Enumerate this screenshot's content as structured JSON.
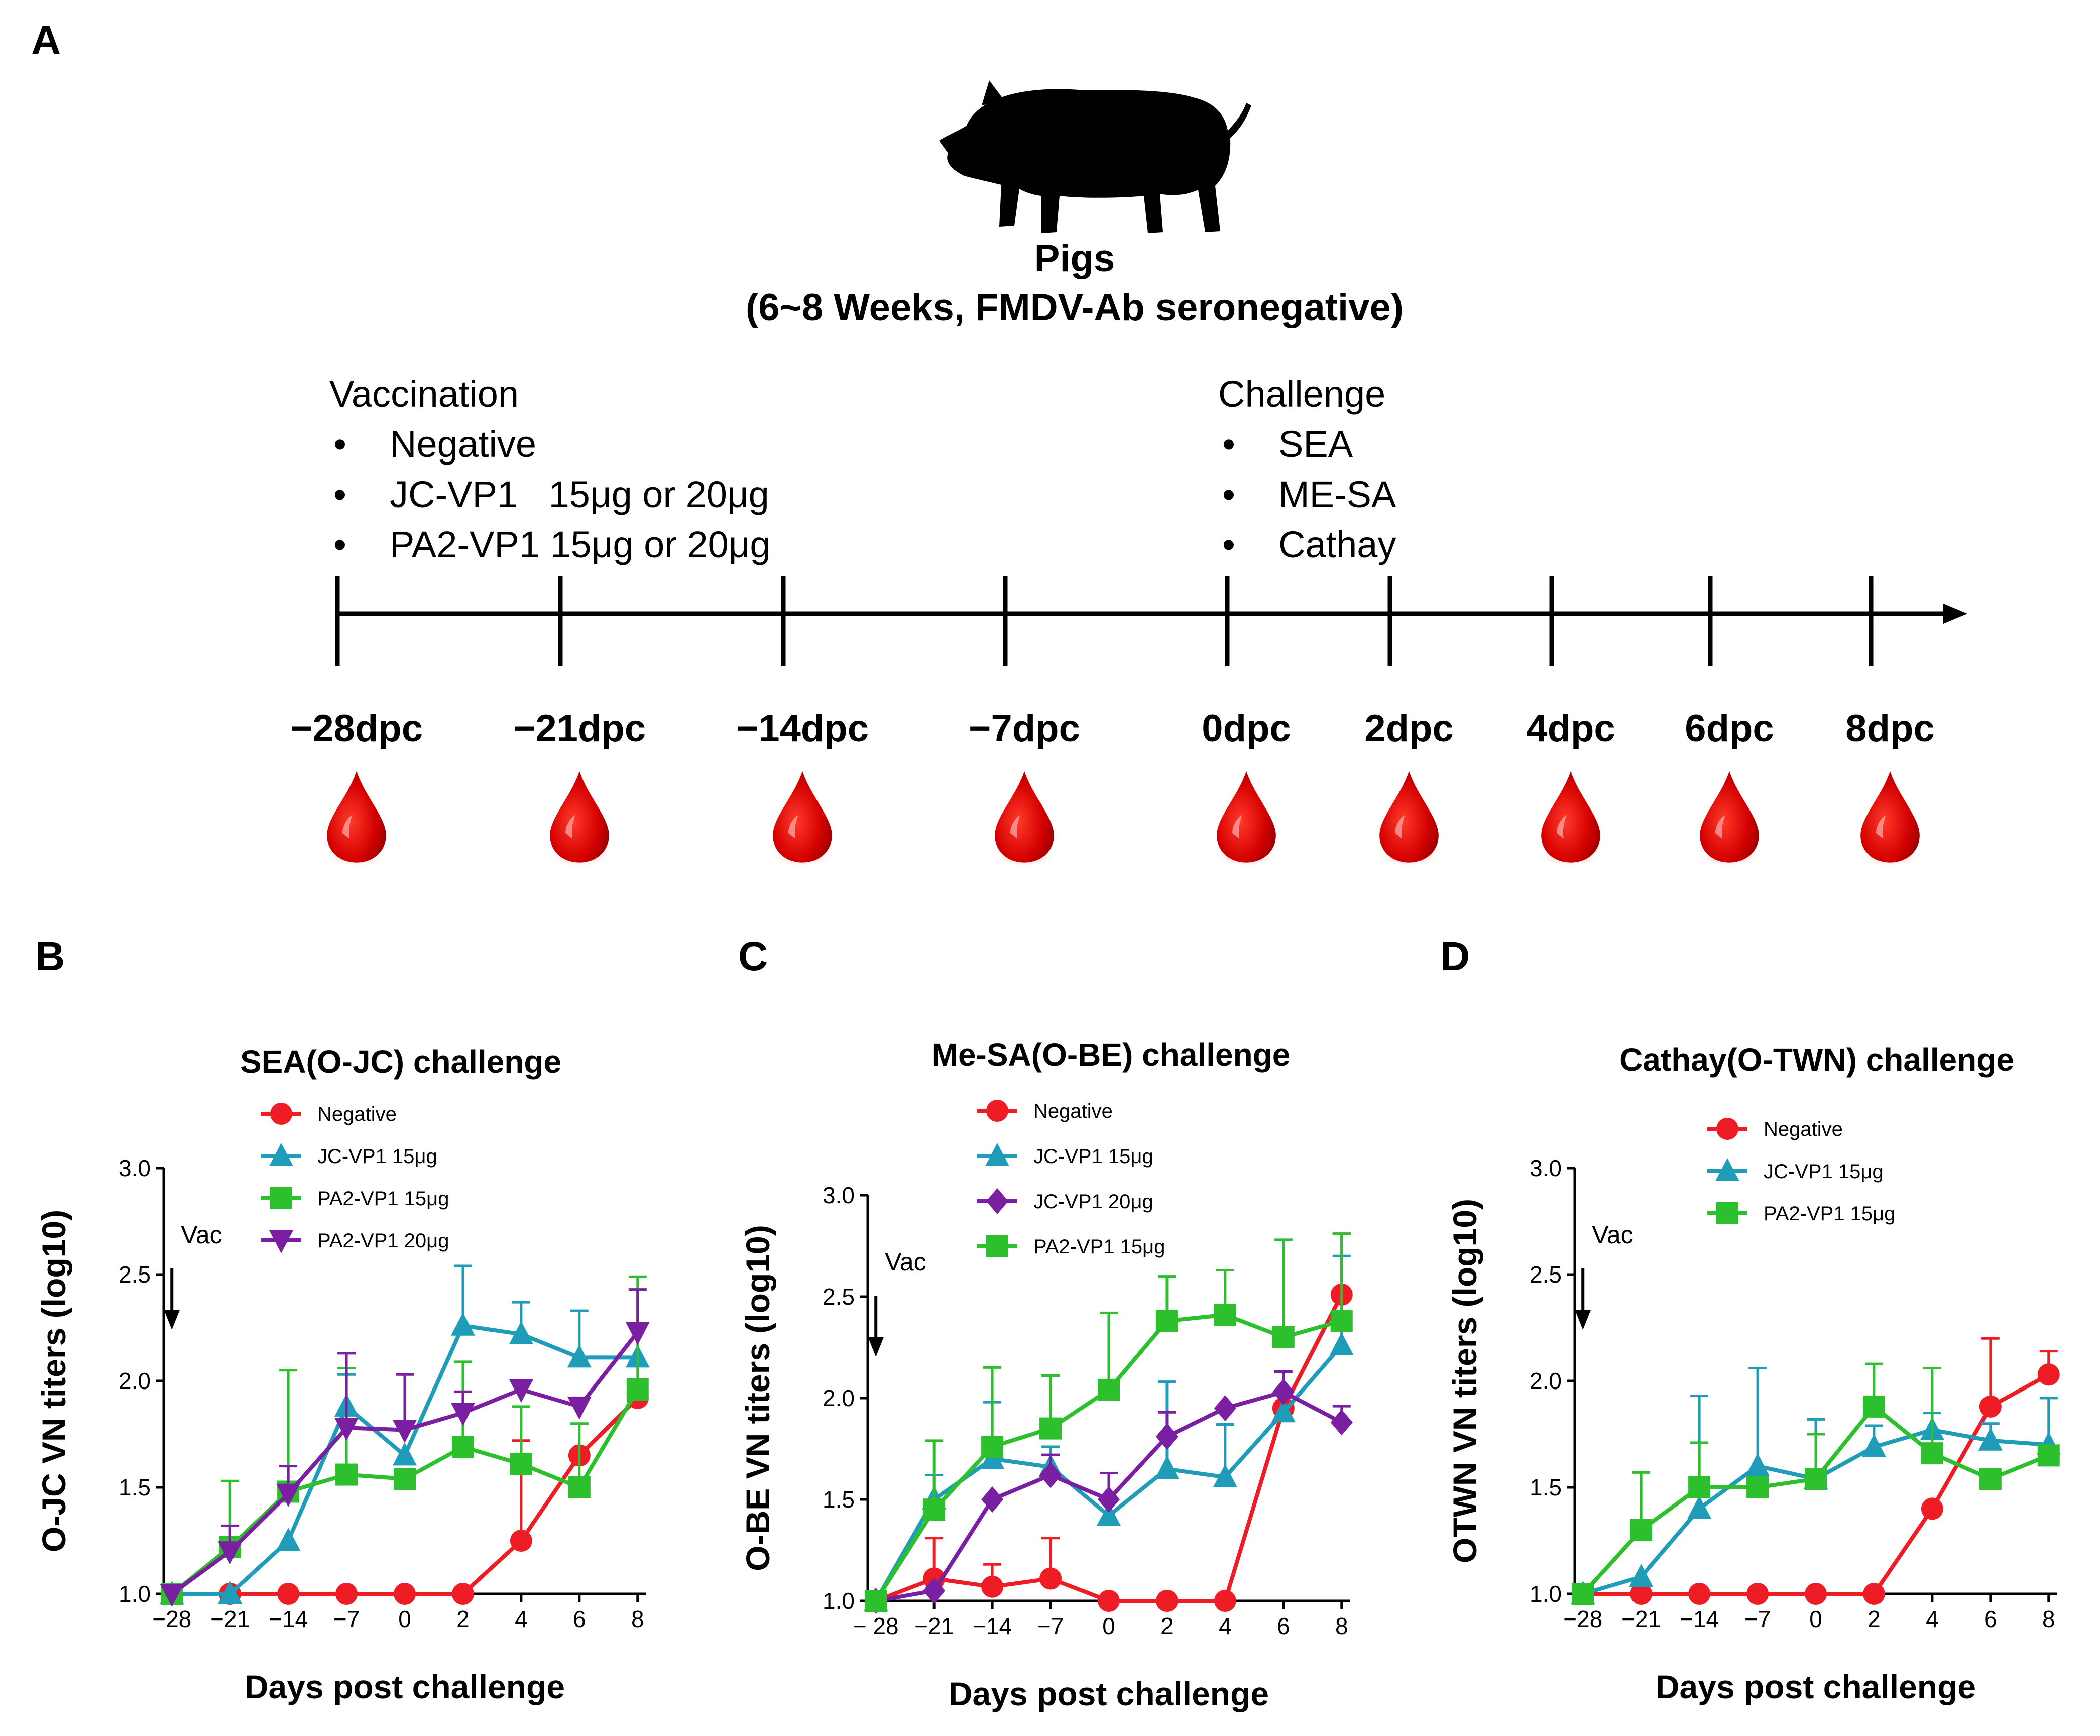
{
  "panel_a": {
    "letter": "A",
    "subject_title": "Pigs",
    "subject_subtitle": "(6~8 Weeks, FMDV-Ab seronegative)",
    "vaccination_heading": "Vaccination",
    "vaccination_items": [
      "Negative",
      "JC-VP1   15μg or 20μg",
      "PA2-VP1 15μg or 20μg"
    ],
    "challenge_heading": "Challenge",
    "challenge_items": [
      "SEA",
      "ME-SA",
      "Cathay"
    ],
    "timeline_labels": [
      "−28dpc",
      "−21dpc",
      "−14dpc",
      "−7dpc",
      "0dpc",
      "2dpc",
      "4dpc",
      "6dpc",
      "8dpc"
    ],
    "bullet": "•",
    "icons": {
      "subject": "pig-silhouette-icon",
      "sample": "blood-drop-icon"
    },
    "colors": {
      "blood": "#d40000",
      "blood_dark": "#8a0000"
    }
  },
  "chart_data": [
    {
      "panel": "B",
      "type": "line",
      "title": "SEA(O-JC) challenge",
      "xlabel": "Days post challenge",
      "ylabel": "O-JC VN titers (log10)",
      "x": [
        -28,
        -21,
        -14,
        -7,
        0,
        2,
        4,
        6,
        8
      ],
      "x_tick_labels": [
        "−28",
        "−21",
        "−14",
        "−7",
        "0",
        "2",
        "4",
        "6",
        "8"
      ],
      "ylim": [
        1.0,
        3.0
      ],
      "y_ticks": [
        "1.0",
        "1.5",
        "2.0",
        "2.5",
        "3.0"
      ],
      "annotation": "Vac",
      "annotation_x": -28,
      "series": [
        {
          "name": "Negative",
          "color": "#ee1c25",
          "marker": "circle",
          "values": [
            1.0,
            1.0,
            1.0,
            1.0,
            1.0,
            1.0,
            1.25,
            1.65,
            1.92
          ],
          "errors": [
            0,
            0,
            0,
            0,
            0,
            0,
            0.47,
            0.0,
            0.0
          ]
        },
        {
          "name": "JC-VP1   15μg",
          "color": "#1f9db8",
          "marker": "triangle-up",
          "values": [
            1.0,
            1.0,
            1.25,
            1.88,
            1.65,
            2.26,
            2.22,
            2.11,
            2.11
          ],
          "errors": [
            0,
            0,
            0,
            0.15,
            0,
            0.28,
            0.15,
            0.22,
            0
          ]
        },
        {
          "name": "PA2-VP1 15μg",
          "color": "#2dc02d",
          "marker": "square",
          "values": [
            1.0,
            1.22,
            1.48,
            1.56,
            1.54,
            1.69,
            1.61,
            1.5,
            1.96
          ],
          "errors": [
            0,
            0.31,
            0.57,
            0.5,
            0,
            0.4,
            0.27,
            0.3,
            0.53
          ]
        },
        {
          "name": "PA2-VP1 20μg",
          "color": "#7b1fa2",
          "marker": "triangle-down",
          "values": [
            1.0,
            1.2,
            1.47,
            1.78,
            1.77,
            1.85,
            1.96,
            1.88,
            2.23
          ],
          "errors": [
            0,
            0.12,
            0.13,
            0.35,
            0.26,
            0.1,
            0,
            0,
            0.2
          ]
        }
      ]
    },
    {
      "panel": "C",
      "type": "line",
      "title": "Me-SA(O-BE) challenge",
      "xlabel": "Days post challenge",
      "ylabel": "O-BE VN titers (log10)",
      "x": [
        -28,
        -21,
        -14,
        -7,
        0,
        2,
        4,
        6,
        8
      ],
      "x_tick_labels": [
        "− 28",
        "−21",
        "−14",
        "−7",
        "0",
        "2",
        "4",
        "6",
        "8"
      ],
      "ylim": [
        1.0,
        3.0
      ],
      "y_ticks": [
        "1.0",
        "1.5",
        "2.0",
        "2.5",
        "3.0"
      ],
      "annotation": "Vac",
      "annotation_x": -28,
      "series": [
        {
          "name": "Negative",
          "color": "#ee1c25",
          "marker": "circle",
          "values": [
            1.0,
            1.11,
            1.07,
            1.11,
            1.0,
            1.0,
            1.0,
            1.95,
            2.51
          ],
          "errors": [
            0,
            0.2,
            0.11,
            0.2,
            0,
            0,
            0,
            0,
            0.3
          ]
        },
        {
          "name": "JC-VP1   15μg",
          "color": "#1f9db8",
          "marker": "triangle-up",
          "values": [
            1.0,
            1.5,
            1.7,
            1.66,
            1.42,
            1.65,
            1.61,
            1.93,
            2.26
          ],
          "errors": [
            0,
            0.12,
            0.28,
            0.1,
            0,
            0.43,
            0.26,
            0,
            0.44
          ]
        },
        {
          "name": "JC-VP1   20μg",
          "color": "#7b1fa2",
          "marker": "diamond",
          "values": [
            1.0,
            1.05,
            1.5,
            1.62,
            1.5,
            1.81,
            1.95,
            2.03,
            1.88
          ],
          "errors": [
            0,
            0,
            0,
            0.1,
            0.13,
            0.12,
            0,
            0.1,
            0.08
          ]
        },
        {
          "name": "PA2-VP1 15μg",
          "color": "#2dc02d",
          "marker": "square",
          "values": [
            1.0,
            1.45,
            1.76,
            1.85,
            2.04,
            2.38,
            2.41,
            2.3,
            2.38
          ],
          "errors": [
            0,
            0.34,
            0.39,
            0.26,
            0.38,
            0.22,
            0.22,
            0.48,
            0.43
          ]
        }
      ]
    },
    {
      "panel": "D",
      "type": "line",
      "title": "Cathay(O-TWN) challenge",
      "xlabel": "Days post challenge",
      "ylabel": "OTWN VN titers (log10)",
      "x": [
        -28,
        -21,
        -14,
        -7,
        0,
        2,
        4,
        6,
        8
      ],
      "x_tick_labels": [
        "−28",
        "−21",
        "−14",
        "−7",
        "0",
        "2",
        "4",
        "6",
        "8"
      ],
      "ylim": [
        1.0,
        3.0
      ],
      "y_ticks": [
        "1.0",
        "1.5",
        "2.0",
        "2.5",
        "3.0"
      ],
      "annotation": "Vac",
      "annotation_x": -28,
      "series": [
        {
          "name": "Negative",
          "color": "#ee1c25",
          "marker": "circle",
          "values": [
            1.0,
            1.0,
            1.0,
            1.0,
            1.0,
            1.0,
            1.4,
            1.88,
            2.03
          ],
          "errors": [
            0,
            0,
            0,
            0,
            0,
            0,
            0,
            0.32,
            0.11
          ]
        },
        {
          "name": "JC-VP1   15μg",
          "color": "#1f9db8",
          "marker": "triangle-up",
          "values": [
            1.0,
            1.08,
            1.4,
            1.6,
            1.54,
            1.69,
            1.77,
            1.72,
            1.7
          ],
          "errors": [
            0,
            0,
            0.53,
            0.46,
            0.28,
            0.1,
            0.08,
            0.08,
            0.22
          ]
        },
        {
          "name": "PA2-VP1 15μg",
          "color": "#2dc02d",
          "marker": "square",
          "values": [
            1.0,
            1.3,
            1.5,
            1.5,
            1.54,
            1.88,
            1.66,
            1.54,
            1.65
          ],
          "errors": [
            0,
            0.27,
            0.21,
            0,
            0.21,
            0.2,
            0.4,
            0,
            0
          ]
        }
      ]
    }
  ]
}
